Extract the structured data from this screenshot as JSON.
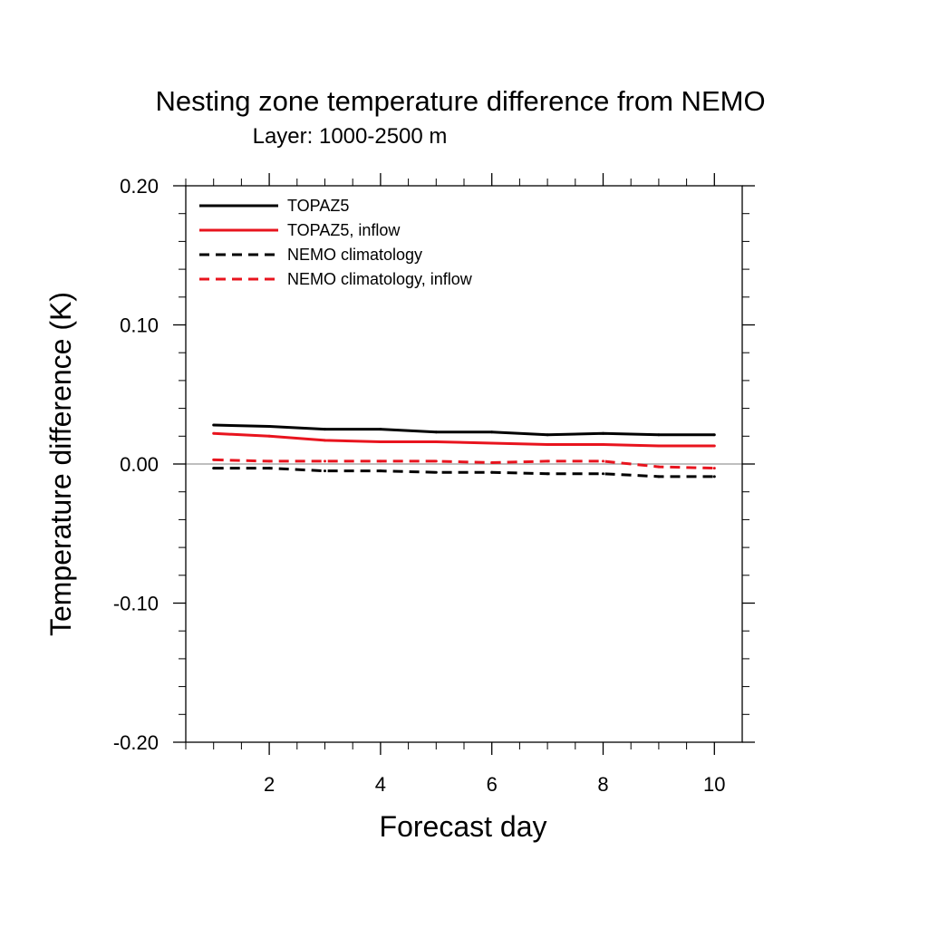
{
  "chart_data": {
    "type": "line",
    "title": "Nesting zone temperature difference from NEMO",
    "subtitle": "Layer: 1000-2500 m",
    "xlabel": "Forecast day",
    "ylabel": "Temperature difference (K)",
    "xlim": [
      0.5,
      10.5
    ],
    "ylim": [
      -0.2,
      0.2
    ],
    "x_ticks": [
      2,
      4,
      6,
      8,
      10
    ],
    "x_tick_labels": [
      "2",
      "4",
      "6",
      "8",
      "10"
    ],
    "y_ticks": [
      0.2,
      0.1,
      0.0,
      -0.1,
      -0.2
    ],
    "y_tick_labels": [
      "0.20",
      "0.10",
      "0.00",
      "-0.10",
      "-0.20"
    ],
    "zero_line": true,
    "grid": false,
    "legend_position": "top-left",
    "x": [
      1,
      2,
      3,
      4,
      5,
      6,
      7,
      8,
      9,
      10
    ],
    "series": [
      {
        "name": "TOPAZ5",
        "color": "#000000",
        "dash": "solid",
        "values": [
          0.028,
          0.027,
          0.025,
          0.025,
          0.023,
          0.023,
          0.021,
          0.022,
          0.021,
          0.021
        ]
      },
      {
        "name": "TOPAZ5, inflow",
        "color": "#e8141e",
        "dash": "solid",
        "values": [
          0.022,
          0.02,
          0.017,
          0.016,
          0.016,
          0.015,
          0.014,
          0.014,
          0.013,
          0.013
        ]
      },
      {
        "name": "NEMO climatology",
        "color": "#000000",
        "dash": "dashed",
        "values": [
          -0.003,
          -0.003,
          -0.005,
          -0.005,
          -0.006,
          -0.006,
          -0.007,
          -0.007,
          -0.009,
          -0.009
        ]
      },
      {
        "name": "NEMO climatology, inflow",
        "color": "#e8141e",
        "dash": "dashed",
        "values": [
          0.003,
          0.002,
          0.002,
          0.002,
          0.002,
          0.001,
          0.002,
          0.002,
          -0.002,
          -0.003
        ]
      }
    ]
  }
}
